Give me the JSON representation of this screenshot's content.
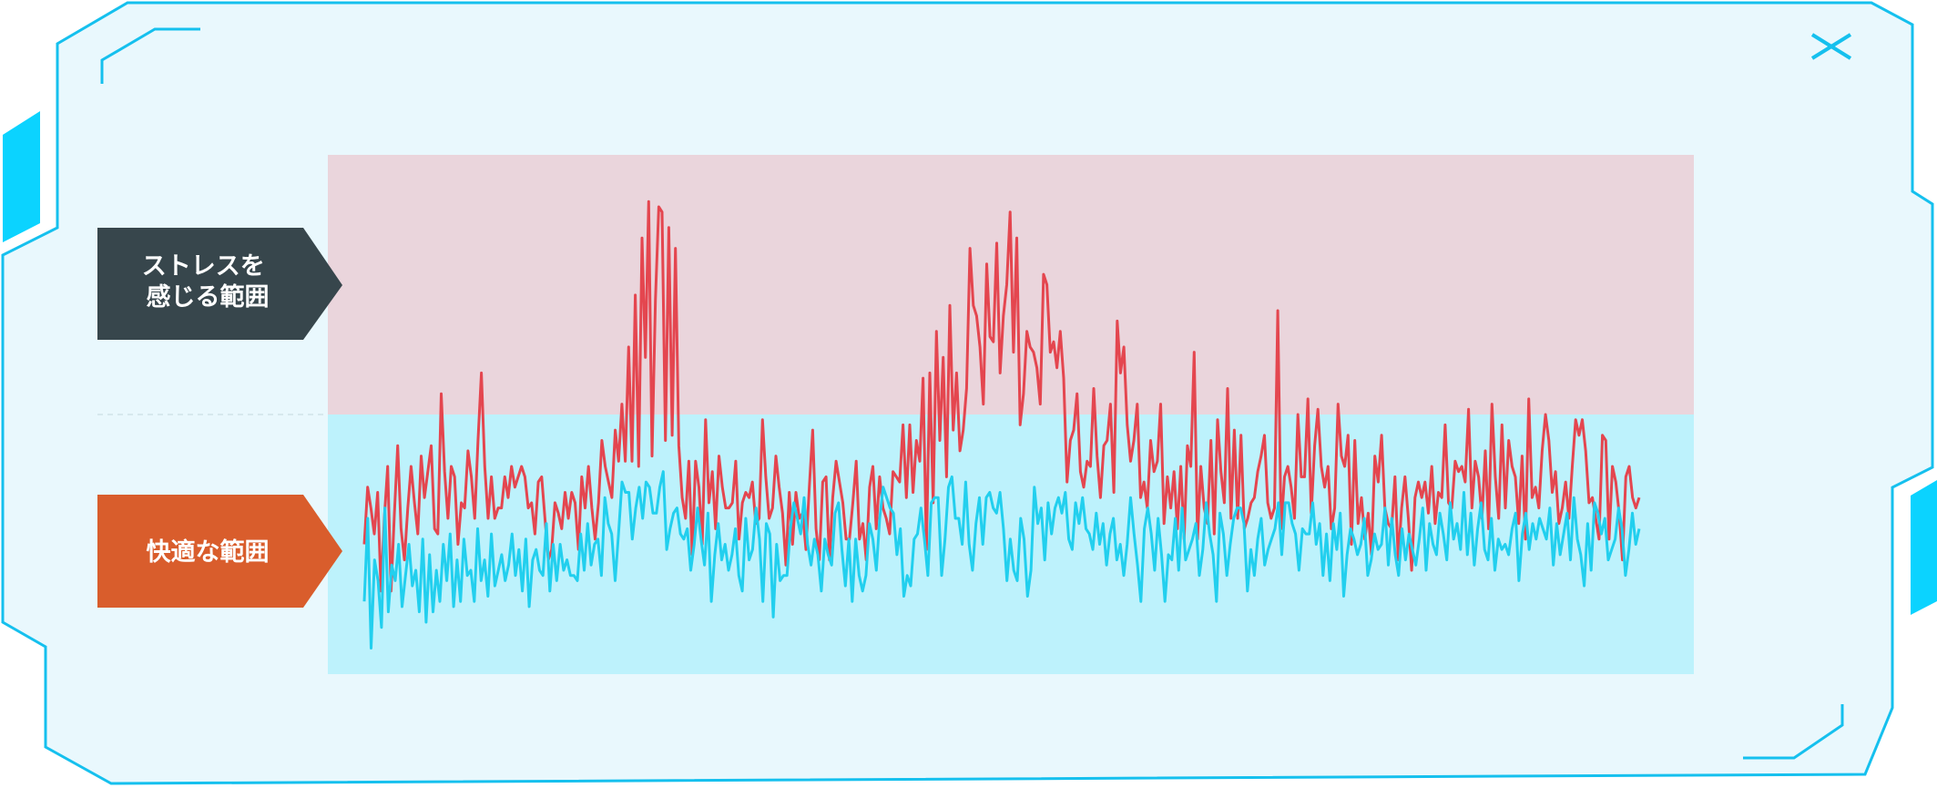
{
  "panel": {
    "title": "",
    "colors": {
      "frame_fill": "#e9f8fd",
      "frame_stroke": "#15c0ee",
      "accent_bar": "#0bd3ff"
    }
  },
  "close_icon": "x-icon",
  "chart_data": {
    "type": "line",
    "title": "",
    "xlabel": "",
    "ylabel": "",
    "ylim": [
      0,
      100
    ],
    "x_tick_labels": [
      "",
      "",
      "",
      "",
      "",
      "",
      ""
    ],
    "bands": [
      {
        "label": "ストレスを\n感じる範囲",
        "from": 50,
        "to": 100,
        "color": "#ead5dc",
        "label_color": "#37464c"
      },
      {
        "label": "快適な範囲",
        "from": 0,
        "to": 50,
        "color": "#bdf2fc",
        "label_color": "#d95d2c"
      }
    ],
    "series": [
      {
        "color": "#e4464f",
        "values": [
          25,
          36,
          32,
          27,
          35,
          16,
          30,
          40,
          16,
          31,
          44,
          28,
          22,
          32,
          40,
          33,
          27,
          42,
          34,
          39,
          44,
          28,
          27,
          54,
          39,
          30,
          40,
          38,
          25,
          33,
          32,
          43,
          38,
          30,
          45,
          58,
          40,
          30,
          38,
          30,
          32,
          32,
          38,
          34,
          40,
          36,
          38,
          40,
          38,
          32,
          33,
          27,
          37,
          38,
          30,
          22,
          24,
          33,
          31,
          28,
          35,
          30,
          35,
          33,
          24,
          38,
          32,
          40,
          32,
          26,
          33,
          45,
          40,
          37,
          34,
          47,
          41,
          52,
          41,
          63,
          41,
          73,
          40,
          84,
          61,
          91,
          42,
          72,
          90,
          89,
          45,
          86,
          46,
          82,
          44,
          34,
          30,
          41,
          23,
          41,
          36,
          25,
          49,
          33,
          39,
          28,
          42,
          36,
          32,
          32,
          33,
          41,
          26,
          33,
          35,
          34,
          37,
          29,
          30,
          49,
          38,
          30,
          32,
          42,
          36,
          31,
          21,
          35,
          25,
          35,
          30,
          31,
          24,
          36,
          47,
          28,
          22,
          37,
          38,
          22,
          34,
          41,
          37,
          33,
          26,
          26,
          33,
          41,
          26,
          29,
          22,
          36,
          40,
          28,
          38,
          32,
          30,
          27,
          39,
          38,
          37,
          48,
          34,
          48,
          35,
          45,
          41,
          57,
          24,
          58,
          33,
          66,
          45,
          61,
          38,
          71,
          47,
          58,
          43,
          47,
          55,
          82,
          71,
          69,
          63,
          52,
          79,
          65,
          64,
          83,
          58,
          69,
          75,
          89,
          62,
          84,
          48,
          54,
          66,
          63,
          62,
          59,
          52,
          77,
          75,
          62,
          64,
          59,
          66,
          57,
          37,
          45,
          47,
          54,
          39,
          36,
          41,
          40,
          55,
          42,
          34,
          44,
          45,
          52,
          35,
          68,
          58,
          63,
          48,
          41,
          45,
          52,
          34,
          37,
          32,
          45,
          39,
          41,
          52,
          29,
          38,
          32,
          39,
          28,
          40,
          26,
          44,
          40,
          62,
          26,
          40,
          32,
          29,
          45,
          27,
          49,
          39,
          33,
          55,
          30,
          47,
          30,
          46,
          28,
          30,
          33,
          34,
          39,
          42,
          46,
          33,
          30,
          32,
          70,
          28,
          38,
          40,
          36,
          30,
          50,
          38,
          38,
          53,
          31,
          44,
          51,
          40,
          36,
          40,
          28,
          32,
          52,
          42,
          40,
          46,
          25,
          45,
          29,
          34,
          26,
          31,
          23,
          42,
          37,
          46,
          32,
          29,
          28,
          38,
          22,
          32,
          38,
          30,
          20,
          34,
          37,
          34,
          37,
          31,
          40,
          29,
          35,
          34,
          48,
          33,
          32,
          41,
          39,
          40,
          37,
          51,
          32,
          41,
          38,
          30,
          43,
          28,
          52,
          38,
          30,
          48,
          32,
          45,
          40,
          38,
          29,
          42,
          26,
          53,
          34,
          36,
          32,
          43,
          50,
          45,
          35,
          39,
          29,
          32,
          37,
          30,
          40,
          49,
          46,
          49,
          43,
          33,
          34,
          30,
          26,
          46,
          45,
          26,
          40,
          37,
          31,
          22,
          38,
          40,
          34,
          32,
          34
        ]
      },
      {
        "color": "#22cfee",
        "values": [
          14,
          30,
          5,
          22,
          18,
          9,
          32,
          12,
          21,
          18,
          25,
          13,
          19,
          25,
          17,
          20,
          12,
          26,
          10,
          23,
          12,
          20,
          14,
          25,
          18,
          27,
          13,
          22,
          14,
          26,
          19,
          20,
          14,
          28,
          18,
          22,
          15,
          27,
          17,
          20,
          23,
          18,
          21,
          27,
          19,
          24,
          16,
          26,
          13,
          22,
          24,
          20,
          19,
          29,
          16,
          25,
          18,
          25,
          20,
          22,
          19,
          19,
          18,
          27,
          20,
          29,
          21,
          25,
          26,
          19,
          34,
          29,
          27,
          18,
          27,
          37,
          35,
          35,
          26,
          32,
          36,
          30,
          37,
          36,
          31,
          31,
          36,
          39,
          24,
          28,
          31,
          32,
          27,
          26,
          28,
          20,
          25,
          32,
          26,
          21,
          31,
          14,
          23,
          29,
          22,
          25,
          20,
          23,
          28,
          19,
          16,
          30,
          22,
          24,
          32,
          26,
          14,
          29,
          27,
          11,
          25,
          18,
          19,
          19,
          28,
          33,
          30,
          27,
          34,
          25,
          21,
          26,
          23,
          16,
          26,
          23,
          21,
          31,
          33,
          24,
          17,
          26,
          14,
          26,
          19,
          16,
          19,
          29,
          26,
          20,
          30,
          36,
          34,
          32,
          31,
          23,
          28,
          15,
          19,
          17,
          26,
          27,
          32,
          26,
          19,
          33,
          34,
          34,
          19,
          26,
          36,
          38,
          30,
          30,
          25,
          37,
          25,
          20,
          29,
          34,
          25,
          34,
          35,
          32,
          31,
          35,
          28,
          18,
          26,
          20,
          18,
          30,
          26,
          15,
          20,
          36,
          29,
          32,
          22,
          33,
          27,
          32,
          34,
          31,
          35,
          26,
          24,
          33,
          29,
          34,
          28,
          27,
          24,
          31,
          25,
          29,
          21,
          27,
          30,
          22,
          25,
          19,
          25,
          34,
          27,
          21,
          14,
          28,
          32,
          27,
          20,
          30,
          23,
          14,
          23,
          22,
          30,
          20,
          32,
          22,
          24,
          26,
          29,
          19,
          24,
          33,
          27,
          23,
          14,
          31,
          27,
          19,
          25,
          30,
          32,
          32,
          29,
          16,
          24,
          19,
          26,
          30,
          21,
          24,
          26,
          28,
          33,
          23,
          33,
          33,
          29,
          27,
          20,
          28,
          27,
          27,
          33,
          25,
          29,
          19,
          27,
          18,
          29,
          24,
          31,
          15,
          23,
          28,
          26,
          23,
          25,
          30,
          19,
          22,
          27,
          24,
          25,
          32,
          21,
          30,
          23,
          19,
          28,
          22,
          27,
          24,
          21,
          26,
          32,
          20,
          29,
          25,
          23,
          31,
          27,
          22,
          33,
          26,
          29,
          24,
          35,
          23,
          31,
          21,
          28,
          33,
          24,
          22,
          30,
          20,
          26,
          24,
          25,
          23,
          28,
          31,
          18,
          27,
          31,
          24,
          29,
          26,
          30,
          28,
          26,
          32,
          21,
          29,
          23,
          27,
          31,
          22,
          34,
          26,
          23,
          17,
          29,
          20,
          33,
          31,
          27,
          30,
          22,
          24,
          26,
          32,
          28,
          19,
          24,
          31,
          25,
          28
        ]
      }
    ]
  }
}
